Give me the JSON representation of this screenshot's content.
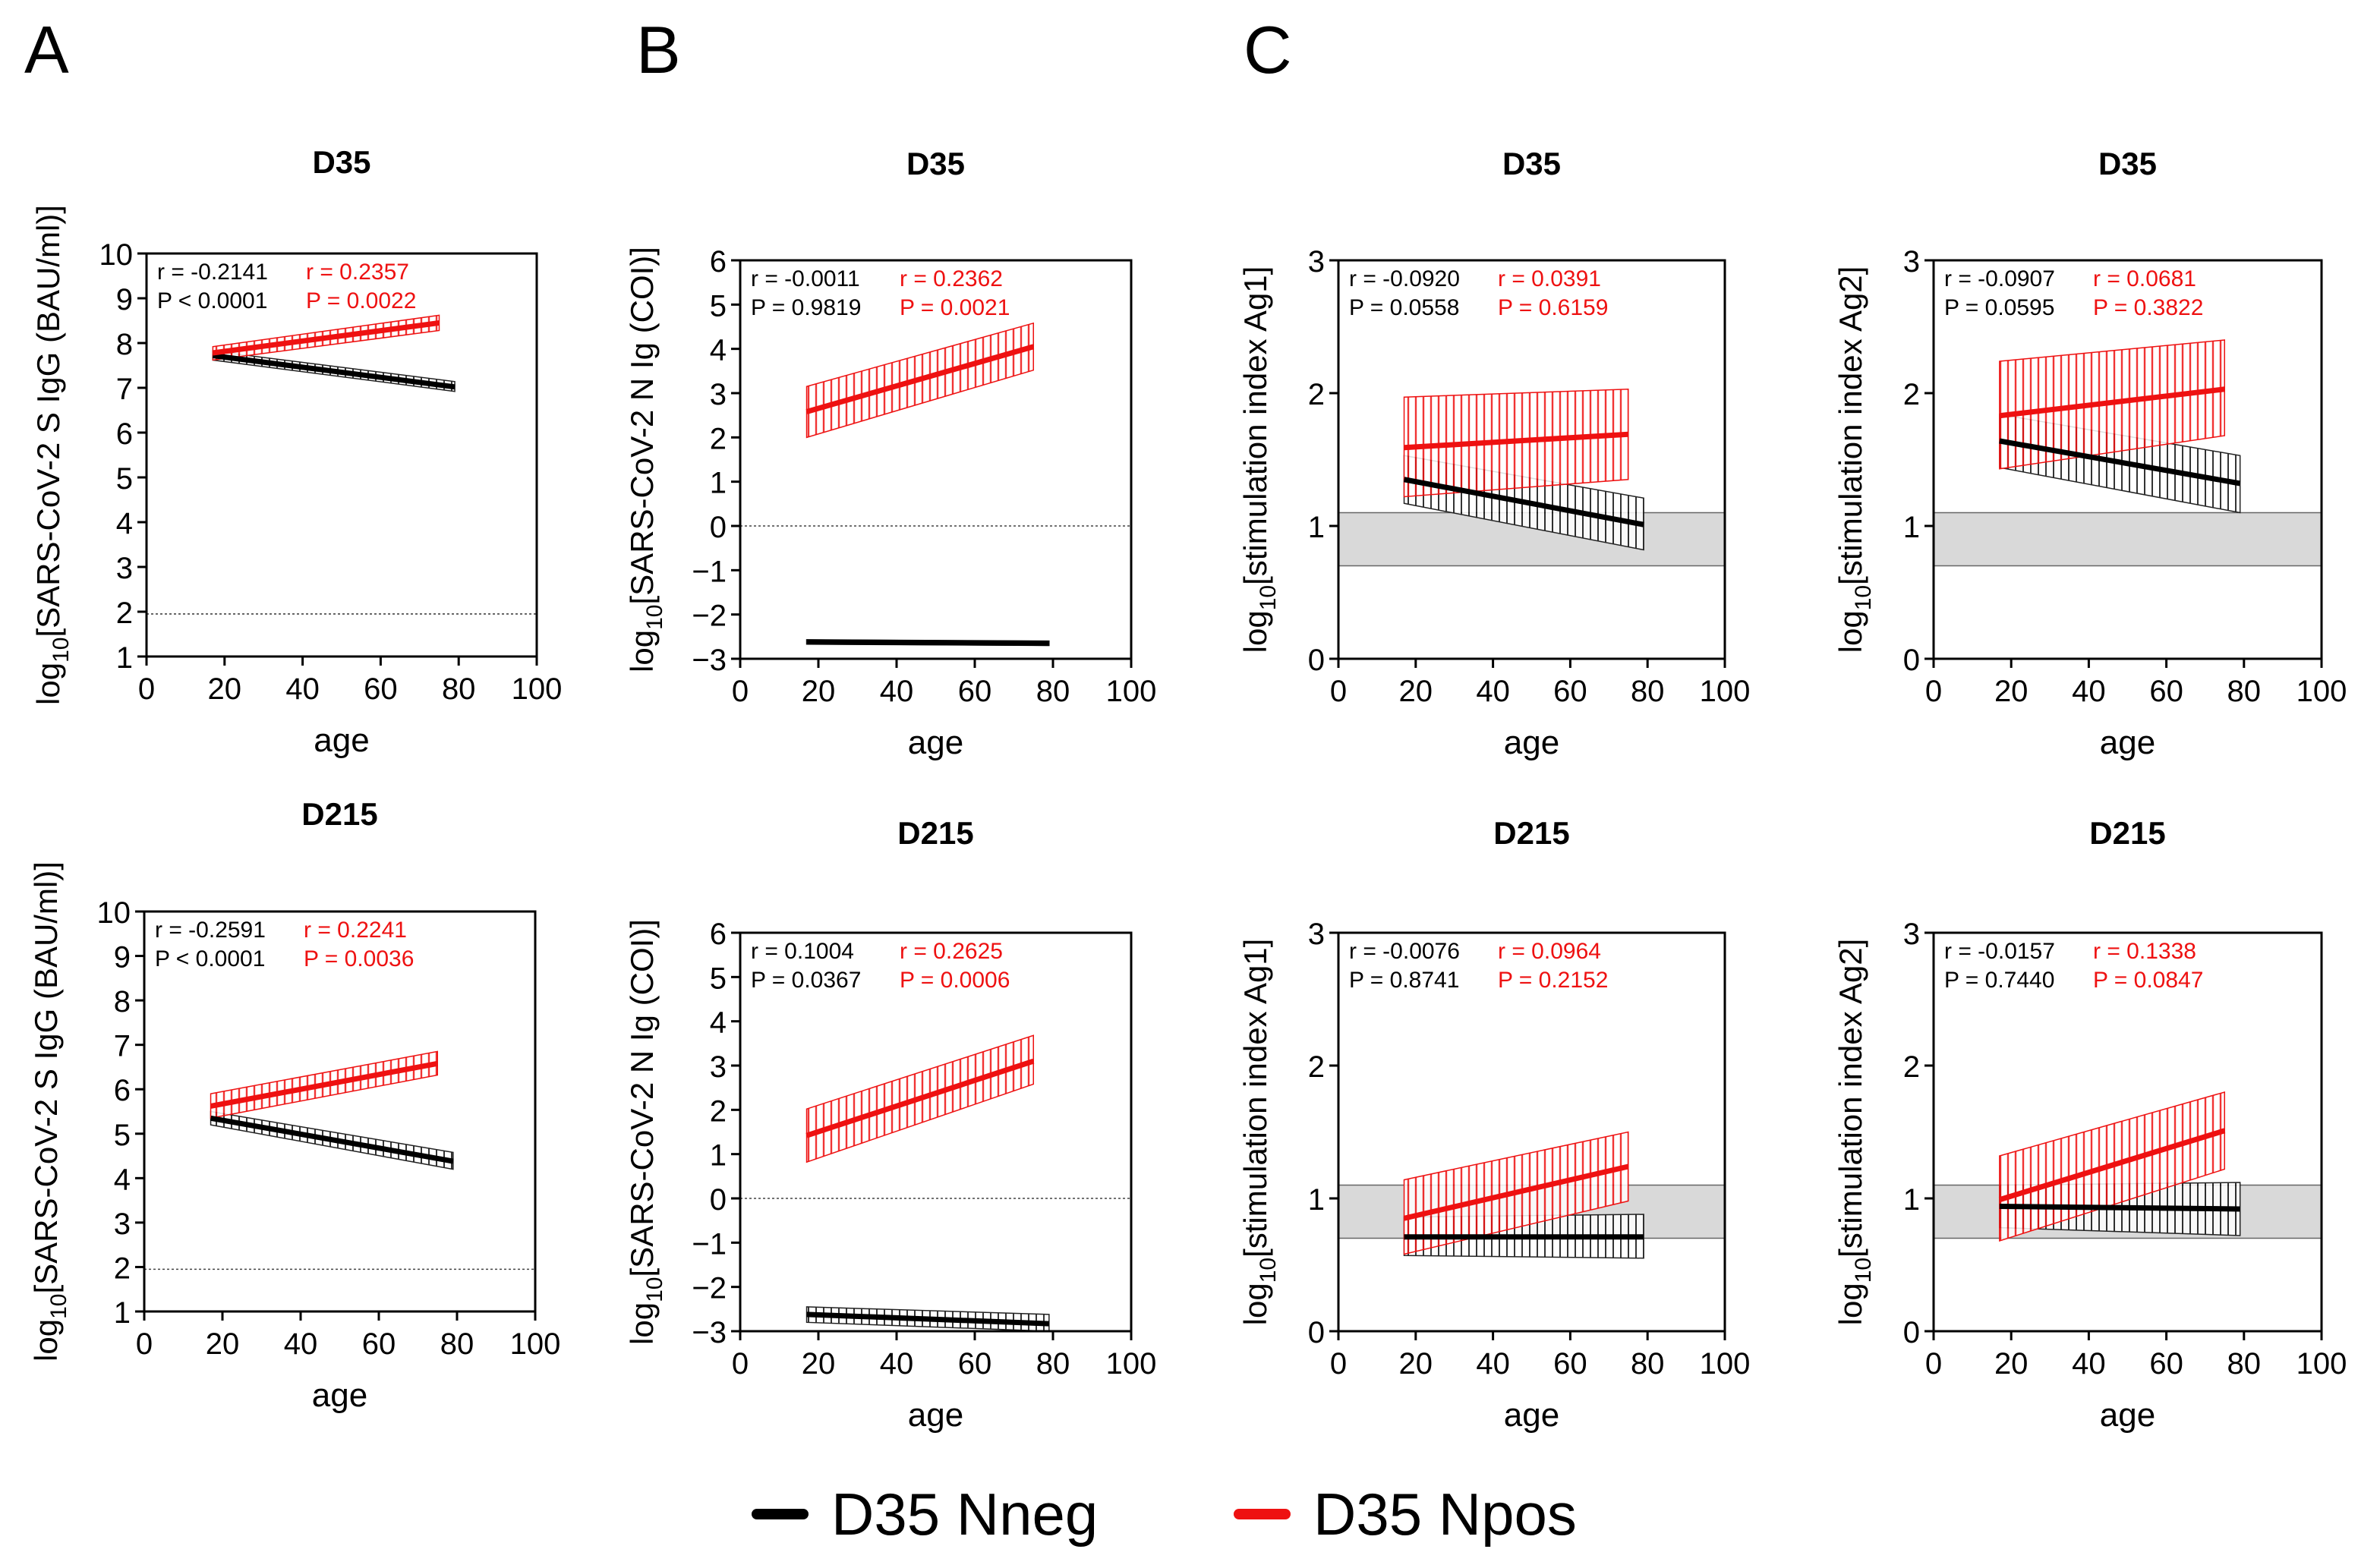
{
  "panels": [
    {
      "letter": "A"
    },
    {
      "letter": "B"
    },
    {
      "letter": "C"
    }
  ],
  "legend": {
    "items": [
      {
        "label": "D35 Nneg",
        "color": "#000000"
      },
      {
        "label": "D35 Npos",
        "color": "#ee1111"
      }
    ]
  },
  "chart_data": [
    {
      "type": "line",
      "panel": "A",
      "row": 1,
      "title": "D35",
      "ylabel_parts": [
        "log",
        "10",
        "[SARS-CoV-2 S IgG (BAU/ml)]"
      ],
      "xlabel": "age",
      "xlim": [
        0,
        100
      ],
      "ylim": [
        1,
        10
      ],
      "xticks": [
        0,
        20,
        40,
        60,
        80,
        100
      ],
      "yticks": [
        1,
        2,
        3,
        4,
        5,
        6,
        7,
        8,
        9,
        10
      ],
      "hline": 1.95,
      "band": null,
      "stats": {
        "neg_r": "r = -0.2141",
        "neg_p": "P < 0.0001",
        "pos_r": "r = 0.2357",
        "pos_p": "P = 0.0022"
      },
      "series": [
        {
          "name": "D35 Nneg",
          "x": [
            17,
            79
          ],
          "y": [
            7.72,
            7.02
          ],
          "ci_lower": [
            7.62,
            6.92
          ],
          "ci_upper": [
            7.82,
            7.14
          ]
        },
        {
          "name": "D35 Npos",
          "x": [
            17,
            75
          ],
          "y": [
            7.78,
            8.45
          ],
          "ci_lower": [
            7.62,
            8.28
          ],
          "ci_upper": [
            7.92,
            8.62
          ]
        }
      ]
    },
    {
      "type": "line",
      "panel": "B",
      "row": 1,
      "title": "D35",
      "ylabel_parts": [
        "log",
        "10",
        "[SARS-CoV-2 N Ig (COI)]"
      ],
      "xlabel": "age",
      "xlim": [
        0,
        100
      ],
      "ylim": [
        -3,
        6
      ],
      "xticks": [
        0,
        20,
        40,
        60,
        80,
        100
      ],
      "yticks": [
        -3,
        -2,
        -1,
        0,
        1,
        2,
        3,
        4,
        5,
        6
      ],
      "hline": 0,
      "band": null,
      "stats": {
        "neg_r": "r = -0.0011",
        "neg_p": "P = 0.9819",
        "pos_r": "r = 0.2362",
        "pos_p": "P = 0.0021"
      },
      "series": [
        {
          "name": "D35 Nneg",
          "x": [
            17,
            79
          ],
          "y": [
            -2.62,
            -2.65
          ],
          "ci_lower": [
            -2.67,
            -2.7
          ],
          "ci_upper": [
            -2.57,
            -2.6
          ]
        },
        {
          "name": "D35 Npos",
          "x": [
            17,
            75
          ],
          "y": [
            2.58,
            4.05
          ],
          "ci_lower": [
            2.0,
            3.52
          ],
          "ci_upper": [
            3.15,
            4.58
          ]
        }
      ]
    },
    {
      "type": "line",
      "panel": "C",
      "row": 1,
      "title": "D35",
      "ylabel_parts": [
        "log",
        "10",
        "[stimulation index Ag1]"
      ],
      "xlabel": "age",
      "xlim": [
        0,
        100
      ],
      "ylim": [
        0,
        3
      ],
      "xticks": [
        0,
        20,
        40,
        60,
        80,
        100
      ],
      "yticks": [
        0,
        1,
        2,
        3
      ],
      "hline": null,
      "band": [
        0.7,
        1.1
      ],
      "stats": {
        "neg_r": "r = -0.0920",
        "neg_p": "P = 0.0558",
        "pos_r": "r = 0.0391",
        "pos_p": "P = 0.6159"
      },
      "series": [
        {
          "name": "D35 Nneg",
          "x": [
            17,
            79
          ],
          "y": [
            1.35,
            1.01
          ],
          "ci_lower": [
            1.17,
            0.82
          ],
          "ci_upper": [
            1.53,
            1.21
          ]
        },
        {
          "name": "D35 Npos",
          "x": [
            17,
            75
          ],
          "y": [
            1.59,
            1.69
          ],
          "ci_lower": [
            1.22,
            1.35
          ],
          "ci_upper": [
            1.97,
            2.03
          ]
        }
      ]
    },
    {
      "type": "line",
      "panel": "C",
      "row": 1,
      "title": "D35",
      "ylabel_parts": [
        "log",
        "10",
        "[stimulation index Ag2]"
      ],
      "xlabel": "age",
      "xlim": [
        0,
        100
      ],
      "ylim": [
        0,
        3
      ],
      "xticks": [
        0,
        20,
        40,
        60,
        80,
        100
      ],
      "yticks": [
        0,
        1,
        2,
        3
      ],
      "hline": null,
      "band": [
        0.7,
        1.1
      ],
      "stats": {
        "neg_r": "r = -0.0907",
        "neg_p": "P = 0.0595",
        "pos_r": "r = 0.0681",
        "pos_p": "P = 0.3822"
      },
      "series": [
        {
          "name": "D35 Nneg",
          "x": [
            17,
            79
          ],
          "y": [
            1.64,
            1.32
          ],
          "ci_lower": [
            1.44,
            1.1
          ],
          "ci_upper": [
            1.84,
            1.53
          ]
        },
        {
          "name": "D35 Npos",
          "x": [
            17,
            75
          ],
          "y": [
            1.83,
            2.03
          ],
          "ci_lower": [
            1.43,
            1.68
          ],
          "ci_upper": [
            2.24,
            2.4
          ]
        }
      ]
    },
    {
      "type": "line",
      "panel": "A",
      "row": 2,
      "title": "D215",
      "ylabel_parts": [
        "log",
        "10",
        "[SARS-CoV-2 S IgG (BAU/ml)]"
      ],
      "xlabel": "age",
      "xlim": [
        0,
        100
      ],
      "ylim": [
        1,
        10
      ],
      "xticks": [
        0,
        20,
        40,
        60,
        80,
        100
      ],
      "yticks": [
        1,
        2,
        3,
        4,
        5,
        6,
        7,
        8,
        9,
        10
      ],
      "hline": 1.95,
      "band": null,
      "stats": {
        "neg_r": "r = -0.2591",
        "neg_p": "P < 0.0001",
        "pos_r": "r = 0.2241",
        "pos_p": "P = 0.0036"
      },
      "series": [
        {
          "name": "D35 Nneg",
          "x": [
            17,
            79
          ],
          "y": [
            5.35,
            4.38
          ],
          "ci_lower": [
            5.2,
            4.2
          ],
          "ci_upper": [
            5.5,
            4.58
          ]
        },
        {
          "name": "D35 Npos",
          "x": [
            17,
            75
          ],
          "y": [
            5.62,
            6.58
          ],
          "ci_lower": [
            5.35,
            6.32
          ],
          "ci_upper": [
            5.9,
            6.85
          ]
        }
      ]
    },
    {
      "type": "line",
      "panel": "B",
      "row": 2,
      "title": "D215",
      "ylabel_parts": [
        "log",
        "10",
        "[SARS-CoV-2 N Ig (COI)]"
      ],
      "xlabel": "age",
      "xlim": [
        0,
        100
      ],
      "ylim": [
        -3,
        6
      ],
      "xticks": [
        0,
        20,
        40,
        60,
        80,
        100
      ],
      "yticks": [
        -3,
        -2,
        -1,
        0,
        1,
        2,
        3,
        4,
        5,
        6
      ],
      "hline": 0,
      "band": null,
      "stats": {
        "neg_r": "r = 0.1004",
        "neg_p": "P = 0.0367",
        "pos_r": "r = 0.2625",
        "pos_p": "P = 0.0006"
      },
      "series": [
        {
          "name": "D35 Nneg",
          "x": [
            17,
            79
          ],
          "y": [
            -2.62,
            -2.83
          ],
          "ci_lower": [
            -2.8,
            -3.0
          ],
          "ci_upper": [
            -2.45,
            -2.62
          ]
        },
        {
          "name": "D35 Npos",
          "x": [
            17,
            75
          ],
          "y": [
            1.42,
            3.1
          ],
          "ci_lower": [
            0.82,
            2.58
          ],
          "ci_upper": [
            2.02,
            3.68
          ]
        }
      ]
    },
    {
      "type": "line",
      "panel": "C",
      "row": 2,
      "title": "D215",
      "ylabel_parts": [
        "log",
        "10",
        "[stimulation index Ag1]"
      ],
      "xlabel": "age",
      "xlim": [
        0,
        100
      ],
      "ylim": [
        0,
        3
      ],
      "xticks": [
        0,
        20,
        40,
        60,
        80,
        100
      ],
      "yticks": [
        0,
        1,
        2,
        3
      ],
      "hline": null,
      "band": [
        0.7,
        1.1
      ],
      "stats": {
        "neg_r": "r = -0.0076",
        "neg_p": "P = 0.8741",
        "pos_r": "r = 0.0964",
        "pos_p": "P = 0.2152"
      },
      "series": [
        {
          "name": "D35 Nneg",
          "x": [
            17,
            79
          ],
          "y": [
            0.71,
            0.71
          ],
          "ci_lower": [
            0.57,
            0.55
          ],
          "ci_upper": [
            0.86,
            0.88
          ]
        },
        {
          "name": "D35 Npos",
          "x": [
            17,
            75
          ],
          "y": [
            0.85,
            1.24
          ],
          "ci_lower": [
            0.58,
            0.98
          ],
          "ci_upper": [
            1.14,
            1.5
          ]
        }
      ]
    },
    {
      "type": "line",
      "panel": "C",
      "row": 2,
      "title": "D215",
      "ylabel_parts": [
        "log",
        "10",
        "[stimulation index Ag2]"
      ],
      "xlabel": "age",
      "xlim": [
        0,
        100
      ],
      "ylim": [
        0,
        3
      ],
      "xticks": [
        0,
        20,
        40,
        60,
        80,
        100
      ],
      "yticks": [
        0,
        1,
        2,
        3
      ],
      "hline": null,
      "band": [
        0.7,
        1.1
      ],
      "stats": {
        "neg_r": "r = -0.0157",
        "neg_p": "P = 0.7440",
        "pos_r": "r = 0.1338",
        "pos_p": "P = 0.0847"
      },
      "series": [
        {
          "name": "D35 Nneg",
          "x": [
            17,
            79
          ],
          "y": [
            0.94,
            0.92
          ],
          "ci_lower": [
            0.78,
            0.72
          ],
          "ci_upper": [
            1.1,
            1.12
          ]
        },
        {
          "name": "D35 Npos",
          "x": [
            17,
            75
          ],
          "y": [
            0.99,
            1.51
          ],
          "ci_lower": [
            0.68,
            1.22
          ],
          "ci_upper": [
            1.32,
            1.8
          ]
        }
      ]
    }
  ]
}
